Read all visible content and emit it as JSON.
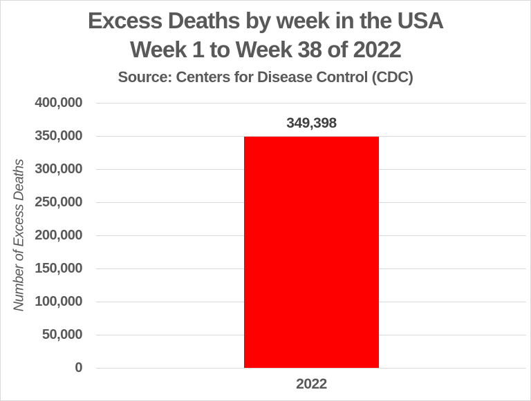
{
  "window": {
    "background": "#FFFFFF",
    "border_color": "#D9D9D9"
  },
  "chart_data": {
    "type": "bar",
    "title": "Excess Deaths by week in the USA",
    "subtitle": "Week 1 to Week 38 of 2022",
    "source": "Source: Centers for Disease Control (CDC)",
    "xlabel": "",
    "ylabel": "Number of Excess Deaths",
    "categories": [
      "2022"
    ],
    "values": [
      349398
    ],
    "value_labels": [
      "349,398"
    ],
    "ylim": [
      0,
      400000
    ],
    "ytick_interval": 50000,
    "yticks": [
      {
        "value": 0,
        "label": "0"
      },
      {
        "value": 50000,
        "label": "50,000"
      },
      {
        "value": 100000,
        "label": "100,000"
      },
      {
        "value": 150000,
        "label": "150,000"
      },
      {
        "value": 200000,
        "label": "200,000"
      },
      {
        "value": 250000,
        "label": "250,000"
      },
      {
        "value": 300000,
        "label": "300,000"
      },
      {
        "value": 350000,
        "label": "350,000"
      },
      {
        "value": 400000,
        "label": "400,000"
      }
    ],
    "grid": true,
    "legend": "none",
    "colors": {
      "bar": "#FF0000",
      "gridline": "#D9D9D9",
      "axis_text": "#595959",
      "title_text": "#595959",
      "value_label_text": "#404040"
    }
  }
}
